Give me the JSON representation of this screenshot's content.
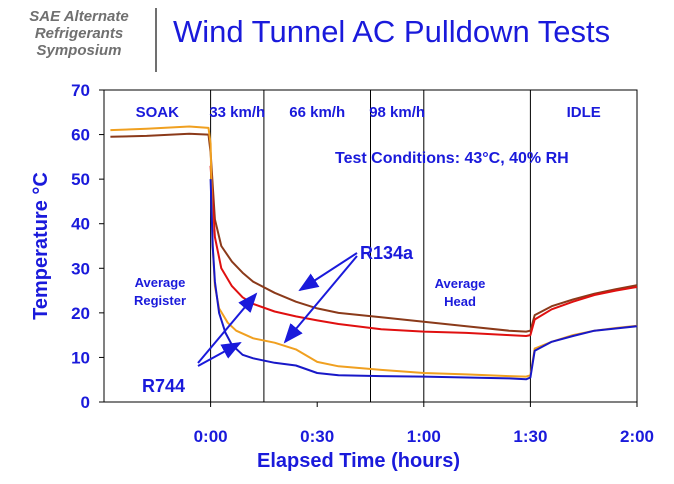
{
  "header": {
    "symposium_lines": [
      "SAE Alternate",
      "Refrigerants",
      "Symposium"
    ],
    "title": "Wind Tunnel AC Pulldown Tests"
  },
  "chart_data": {
    "type": "line",
    "xlabel": "Elapsed Time (hours)",
    "ylabel": "Temperature °C",
    "xlim": [
      -0.5,
      2.0
    ],
    "ylim": [
      0,
      70
    ],
    "yticks": [
      0,
      10,
      20,
      30,
      40,
      50,
      60,
      70
    ],
    "xticks": [
      {
        "value": 0,
        "label": "0:00"
      },
      {
        "value": 0.5,
        "label": "0:30"
      },
      {
        "value": 1.0,
        "label": "1:00"
      },
      {
        "value": 1.5,
        "label": "1:30"
      },
      {
        "value": 2.0,
        "label": "2:00"
      }
    ],
    "phases": [
      {
        "label": "SOAK",
        "start": -0.5,
        "end": 0
      },
      {
        "label": "33 km/h",
        "start": 0,
        "end": 0.25
      },
      {
        "label": "66 km/h",
        "start": 0.25,
        "end": 0.75
      },
      {
        "label": "98 km/h",
        "start": 0.75,
        "end": 1.0
      },
      {
        "label": "IDLE",
        "start": 1.5,
        "end": 2.0
      }
    ],
    "phase_dividers": [
      0,
      0.25,
      0.75,
      1.0,
      1.5
    ],
    "annotations": {
      "conditions": "Test Conditions: 43°C, 40% RH",
      "register": "Average\nRegister",
      "head": "Average\nHead",
      "r134a": "R134a",
      "r744": "R744"
    },
    "colors": {
      "axis": "#1a1adb",
      "r134a_head": "#8b3a1a",
      "r744_head": "#e01010",
      "r134a_register": "#f0a020",
      "r744_register": "#1818c8",
      "arrow": "#1a1adb"
    },
    "series": [
      {
        "id": "r134a_head",
        "x": [
          -0.47,
          -0.3,
          -0.1,
          -0.01,
          0.0,
          0.02,
          0.05,
          0.1,
          0.15,
          0.2,
          0.3,
          0.4,
          0.5,
          0.6,
          0.8,
          1.0,
          1.2,
          1.4,
          1.48,
          1.5,
          1.52,
          1.6,
          1.7,
          1.8,
          1.9,
          2.0
        ],
        "y": [
          59.5,
          59.7,
          60.2,
          60.0,
          56,
          41,
          35,
          31.5,
          29,
          27,
          24.5,
          22.5,
          21,
          20,
          19,
          18,
          17,
          16,
          15.8,
          16,
          19.5,
          21.5,
          23,
          24.3,
          25.3,
          26.2
        ]
      },
      {
        "id": "r744_head",
        "x": [
          0.0,
          0.01,
          0.02,
          0.05,
          0.1,
          0.15,
          0.2,
          0.3,
          0.4,
          0.5,
          0.6,
          0.8,
          1.0,
          1.2,
          1.4,
          1.48,
          1.5,
          1.52,
          1.6,
          1.7,
          1.8,
          1.9,
          2.0
        ],
        "y": [
          53,
          45,
          37,
          30,
          26,
          23.5,
          22,
          20.3,
          19.2,
          18.3,
          17.5,
          16.3,
          15.8,
          15.5,
          15,
          14.8,
          15,
          18.5,
          20.8,
          22.5,
          24,
          25,
          25.8
        ]
      },
      {
        "id": "r134a_register",
        "x": [
          -0.47,
          -0.3,
          -0.1,
          -0.01,
          0.0,
          0.01,
          0.02,
          0.04,
          0.08,
          0.12,
          0.2,
          0.3,
          0.4,
          0.5,
          0.6,
          0.8,
          1.0,
          1.2,
          1.3,
          1.4,
          1.48,
          1.5,
          1.52,
          1.6,
          1.7,
          1.8,
          1.9,
          2.0
        ],
        "y": [
          61,
          61.3,
          61.8,
          61.5,
          58,
          35,
          26,
          21,
          17.8,
          16,
          14.3,
          13.3,
          11.8,
          9,
          8,
          7.2,
          6.5,
          6.2,
          6,
          5.8,
          5.7,
          6,
          12,
          13.5,
          15,
          16,
          16.6,
          17.1
        ]
      },
      {
        "id": "r744_register",
        "x": [
          0.0,
          0.01,
          0.02,
          0.04,
          0.07,
          0.1,
          0.15,
          0.2,
          0.3,
          0.4,
          0.5,
          0.6,
          0.8,
          1.0,
          1.2,
          1.4,
          1.48,
          1.5,
          1.52,
          1.6,
          1.7,
          1.8,
          1.9,
          2.0
        ],
        "y": [
          50,
          35,
          27,
          20,
          15.5,
          12.8,
          10.6,
          9.8,
          8.8,
          8.2,
          6.5,
          6.0,
          5.8,
          5.7,
          5.5,
          5.3,
          5.1,
          5.5,
          11.5,
          13.5,
          14.8,
          16,
          16.5,
          17
        ]
      }
    ]
  }
}
